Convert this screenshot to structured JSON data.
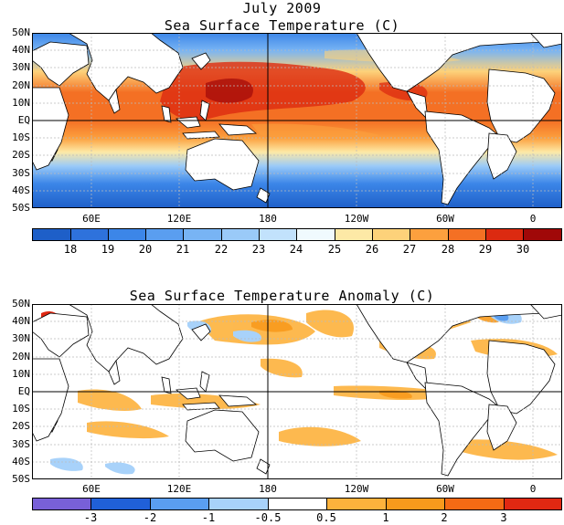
{
  "header": {
    "date_title": "July 2009"
  },
  "top_panel": {
    "title": "Sea Surface Temperature (C)",
    "lat_labels": [
      "50N",
      "40N",
      "30N",
      "20N",
      "10N",
      "EQ",
      "10S",
      "20S",
      "30S",
      "40S",
      "50S"
    ],
    "lon_labels": [
      "60E",
      "120E",
      "180",
      "120W",
      "60W",
      "0"
    ],
    "colorbar": {
      "labels": [
        "18",
        "19",
        "20",
        "21",
        "22",
        "23",
        "24",
        "25",
        "26",
        "27",
        "28",
        "29",
        "30"
      ],
      "colors": [
        "#1e5fc8",
        "#2e72dc",
        "#3c86e8",
        "#5a9ef0",
        "#78b4f4",
        "#9acaf8",
        "#c2e2fc",
        "#f0fafe",
        "#fde9a6",
        "#fdd27a",
        "#fca03e",
        "#f47024",
        "#dc2a10",
        "#a00808"
      ]
    }
  },
  "bottom_panel": {
    "title": "Sea Surface Temperature Anomaly (C)",
    "lat_labels": [
      "50N",
      "40N",
      "30N",
      "20N",
      "10N",
      "EQ",
      "10S",
      "20S",
      "30S",
      "40S",
      "50S"
    ],
    "lon_labels": [
      "60E",
      "120E",
      "180",
      "120W",
      "60W",
      "0"
    ],
    "colorbar": {
      "labels": [
        "-3",
        "-2",
        "-1",
        "-0.5",
        "0.5",
        "1",
        "2",
        "3"
      ],
      "colors": [
        "#7860d8",
        "#2060d8",
        "#5a9ef0",
        "#a8d2fa",
        "#ffffff",
        "#fdb23c",
        "#f89a1c",
        "#f46a14",
        "#e02812"
      ]
    }
  }
}
